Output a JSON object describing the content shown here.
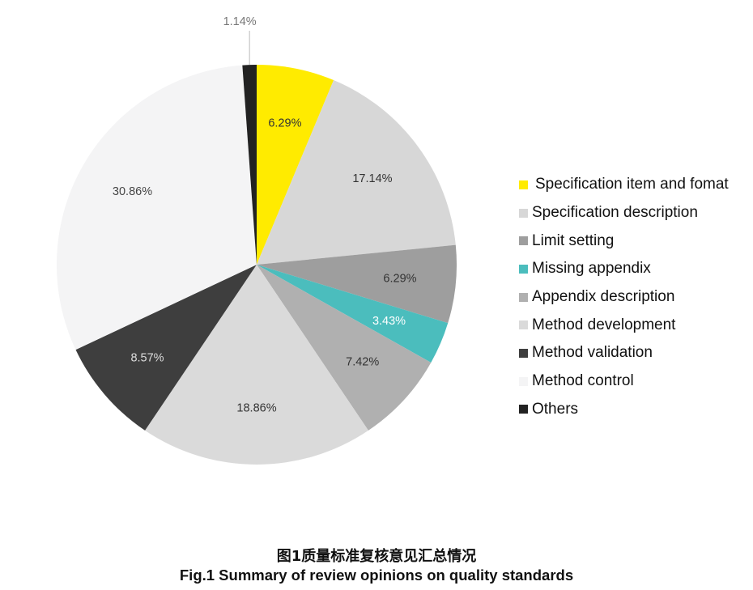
{
  "chart_data": {
    "type": "pie",
    "title": "",
    "start_angle_deg": 0,
    "direction": "clockwise",
    "categories": [
      "Specification item and fomat",
      "Specification description",
      "Limit setting",
      "Missing appendix",
      "Appendix description",
      "Method development",
      "Method validation",
      "Method control",
      "Others"
    ],
    "values": [
      6.29,
      17.14,
      6.29,
      3.43,
      7.42,
      18.86,
      8.57,
      30.86,
      1.14
    ],
    "labels": [
      "6.29%",
      "17.14%",
      "6.29%",
      "3.43%",
      "7.42%",
      "18.86%",
      "8.57%",
      "30.86%",
      "1.14%"
    ],
    "colors": [
      "#FFEB00",
      "#D7D7D7",
      "#9E9E9E",
      "#4BBDBD",
      "#B0B0B0",
      "#DADADA",
      "#3E3E3E",
      "#F4F4F5",
      "#222222"
    ],
    "label_colors": [
      "#333333",
      "#333333",
      "#333333",
      "#FFFFFF",
      "#333333",
      "#333333",
      "#DDDDDD",
      "#444444",
      "#777777"
    ],
    "legend_position": "right"
  },
  "legend": {
    "items": [
      {
        "label": "Specification item and fomat",
        "color": "#FFEB00"
      },
      {
        "label": "Specification description",
        "color": "#D7D7D7"
      },
      {
        "label": "Limit setting",
        "color": "#9E9E9E"
      },
      {
        "label": "Missing appendix",
        "color": "#4BBDBD"
      },
      {
        "label": "Appendix description",
        "color": "#B0B0B0"
      },
      {
        "label": "Method development",
        "color": "#DADADA"
      },
      {
        "label": "Method validation",
        "color": "#3E3E3E"
      },
      {
        "label": "Method control",
        "color": "#F4F4F5"
      },
      {
        "label": "Others",
        "color": "#222222"
      }
    ]
  },
  "caption": {
    "chinese": "图1质量标准复核意见汇总情况",
    "english": "Fig.1 Summary of review opinions on quality standards"
  }
}
